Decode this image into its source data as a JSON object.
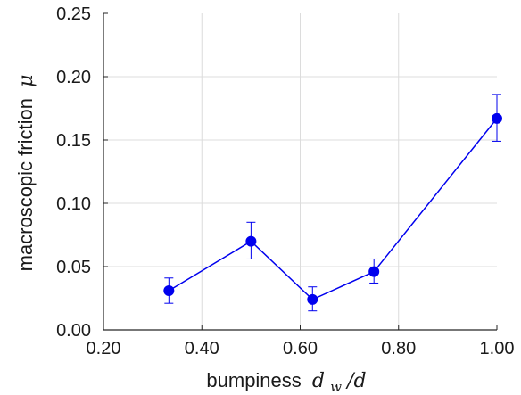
{
  "chart_data": {
    "type": "line",
    "title": "",
    "xlabel": {
      "text": "bumpiness",
      "math": "d",
      "sub": "w",
      "tail": "/d"
    },
    "ylabel": {
      "text": "macroscopic friction",
      "math": "μ"
    },
    "xlim": [
      0.2,
      1.0
    ],
    "ylim": [
      0.0,
      0.25
    ],
    "xticks": [
      "0.20",
      "0.40",
      "0.60",
      "0.80",
      "1.00"
    ],
    "yticks": [
      "0.00",
      "0.05",
      "0.10",
      "0.15",
      "0.20",
      "0.25"
    ],
    "grid": true,
    "legend": "none",
    "series": [
      {
        "color": "#0000ee",
        "x": [
          0.333,
          0.5,
          0.625,
          0.75,
          1.0
        ],
        "y": [
          0.031,
          0.07,
          0.024,
          0.046,
          0.167
        ],
        "err_low": [
          0.021,
          0.056,
          0.015,
          0.037,
          0.149
        ],
        "err_high": [
          0.041,
          0.085,
          0.034,
          0.056,
          0.186
        ]
      }
    ]
  }
}
